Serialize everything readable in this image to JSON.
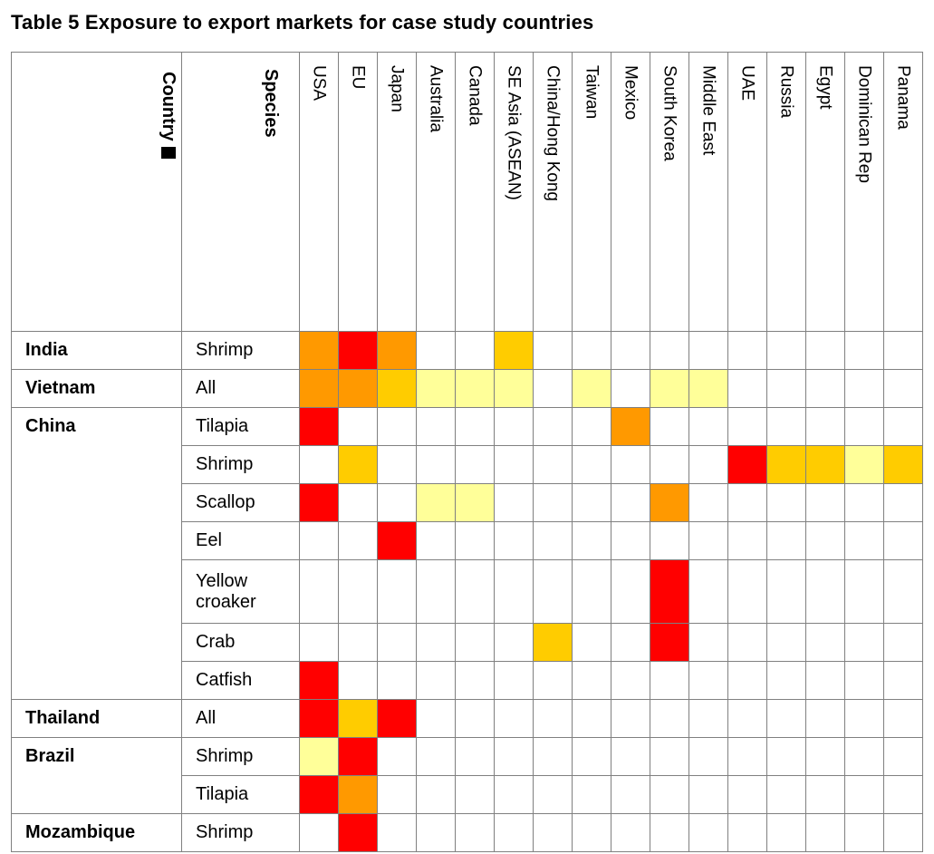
{
  "title": "Table 5 Exposure to export markets for case study countries",
  "header": {
    "country_label": "Country",
    "species_label": "Species"
  },
  "colors": {
    "red": "#FF0000",
    "orange": "#FF9900",
    "gold": "#FFCC00",
    "pale_yellow": "#FFFF99",
    "grid": "#808080",
    "text": "#000000"
  },
  "chart_data": {
    "type": "heatmap",
    "title": "Table 5 Exposure to export markets for case study countries",
    "columns": [
      "USA",
      "EU",
      "Japan",
      "Australia",
      "Canada",
      "SE Asia (ASEAN)",
      "China/Hong Kong",
      "Taiwan",
      "Mexico",
      "South Korea",
      "Middle East",
      "UAE",
      "Russia",
      "Egypt",
      "Dominican Rep",
      "Panama"
    ],
    "intensity_order_low_to_high": [
      "pale_yellow",
      "gold",
      "orange",
      "red"
    ],
    "rows": [
      {
        "country": "India",
        "rowspan": 1,
        "species": "Shrimp",
        "values": [
          "orange",
          "red",
          "orange",
          "",
          "",
          "gold",
          "",
          "",
          "",
          "",
          "",
          "",
          "",
          "",
          "",
          ""
        ]
      },
      {
        "country": "Vietnam",
        "rowspan": 1,
        "species": "All",
        "values": [
          "orange",
          "orange",
          "gold",
          "pale_yellow",
          "pale_yellow",
          "pale_yellow",
          "",
          "pale_yellow",
          "",
          "pale_yellow",
          "pale_yellow",
          "",
          "",
          "",
          "",
          ""
        ]
      },
      {
        "country": "China",
        "rowspan": 7,
        "species": "Tilapia",
        "values": [
          "red",
          "",
          "",
          "",
          "",
          "",
          "",
          "",
          "orange",
          "",
          "",
          "",
          "",
          "",
          "",
          ""
        ]
      },
      {
        "country": null,
        "species": "Shrimp",
        "values": [
          "",
          "gold",
          "",
          "",
          "",
          "",
          "",
          "",
          "",
          "",
          "",
          "red",
          "gold",
          "gold",
          "pale_yellow",
          "gold"
        ]
      },
      {
        "country": null,
        "species": "Scallop",
        "values": [
          "red",
          "",
          "",
          "pale_yellow",
          "pale_yellow",
          "",
          "",
          "",
          "",
          "orange",
          "",
          "",
          "",
          "",
          "",
          ""
        ]
      },
      {
        "country": null,
        "species": "Eel",
        "values": [
          "",
          "",
          "red",
          "",
          "",
          "",
          "",
          "",
          "",
          "",
          "",
          "",
          "",
          "",
          "",
          ""
        ]
      },
      {
        "country": null,
        "species": "Yellow croaker",
        "values": [
          "",
          "",
          "",
          "",
          "",
          "",
          "",
          "",
          "",
          "red",
          "",
          "",
          "",
          "",
          "",
          ""
        ]
      },
      {
        "country": null,
        "species": "Crab",
        "values": [
          "",
          "",
          "",
          "",
          "",
          "",
          "gold",
          "",
          "",
          "red",
          "",
          "",
          "",
          "",
          "",
          ""
        ]
      },
      {
        "country": null,
        "species": "Catfish",
        "values": [
          "red",
          "",
          "",
          "",
          "",
          "",
          "",
          "",
          "",
          "",
          "",
          "",
          "",
          "",
          "",
          ""
        ]
      },
      {
        "country": "Thailand",
        "rowspan": 1,
        "species": "All",
        "values": [
          "red",
          "gold",
          "red",
          "",
          "",
          "",
          "",
          "",
          "",
          "",
          "",
          "",
          "",
          "",
          "",
          ""
        ]
      },
      {
        "country": "Brazil",
        "rowspan": 2,
        "species": "Shrimp",
        "values": [
          "pale_yellow",
          "red",
          "",
          "",
          "",
          "",
          "",
          "",
          "",
          "",
          "",
          "",
          "",
          "",
          "",
          ""
        ]
      },
      {
        "country": null,
        "species": "Tilapia",
        "values": [
          "red",
          "orange",
          "",
          "",
          "",
          "",
          "",
          "",
          "",
          "",
          "",
          "",
          "",
          "",
          "",
          ""
        ]
      },
      {
        "country": "Mozambique",
        "rowspan": 1,
        "species": "Shrimp",
        "values": [
          "",
          "red",
          "",
          "",
          "",
          "",
          "",
          "",
          "",
          "",
          "",
          "",
          "",
          "",
          "",
          ""
        ]
      }
    ]
  }
}
